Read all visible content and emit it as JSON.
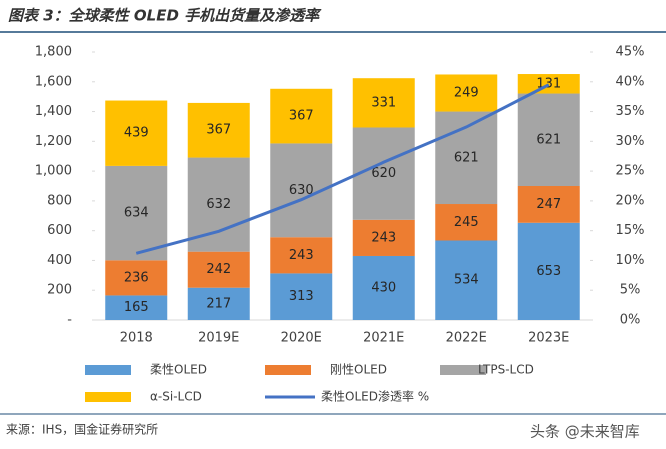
{
  "header": {
    "title": "图表 3：全球柔性 OLED 手机出货量及渗透率"
  },
  "chart_data": {
    "type": "bar",
    "stacked": true,
    "categories": [
      "2018",
      "2019E",
      "2020E",
      "2021E",
      "2022E",
      "2023E"
    ],
    "series": [
      {
        "name": "柔性OLED",
        "color": "#5B9BD5",
        "values": [
          165,
          217,
          313,
          430,
          534,
          653
        ]
      },
      {
        "name": "刚性OLED",
        "color": "#ED7D31",
        "values": [
          236,
          242,
          243,
          243,
          245,
          247
        ]
      },
      {
        "name": "LTPS-LCD",
        "color": "#A5A5A5",
        "values": [
          634,
          632,
          630,
          620,
          621,
          621
        ]
      },
      {
        "name": "α-Si-LCD",
        "color": "#FFC000",
        "values": [
          439,
          367,
          367,
          331,
          249,
          131
        ]
      },
      {
        "name": "柔性OLED渗透率 %",
        "color": "#4472C4",
        "type": "line",
        "axis": "y2",
        "values": [
          11.2,
          14.9,
          20.2,
          26.5,
          32.4,
          39.5
        ]
      }
    ],
    "ylim": [
      0,
      1800
    ],
    "yticks": [
      {
        "value": 0,
        "label": "-"
      },
      200,
      400,
      600,
      800,
      {
        "value": 1000,
        "label": "1,000"
      },
      {
        "value": 1200,
        "label": "1,200"
      },
      {
        "value": 1400,
        "label": "1,400"
      },
      {
        "value": 1600,
        "label": "1,600"
      },
      {
        "value": 1800,
        "label": "1,800"
      }
    ],
    "y2lim": [
      0,
      45
    ],
    "y2ticks": [
      {
        "value": 0,
        "label": "0%"
      },
      {
        "value": 5,
        "label": "5%"
      },
      {
        "value": 10,
        "label": "10%"
      },
      {
        "value": 15,
        "label": "15%"
      },
      {
        "value": 20,
        "label": "20%"
      },
      {
        "value": 25,
        "label": "25%"
      },
      {
        "value": 30,
        "label": "30%"
      },
      {
        "value": 35,
        "label": "35%"
      },
      {
        "value": 40,
        "label": "40%"
      },
      {
        "value": 45,
        "label": "45%"
      }
    ],
    "grid": false
  },
  "footer": {
    "source": "来源：IHS，国金证券研究所",
    "watermark": "头条 @未来智库"
  }
}
